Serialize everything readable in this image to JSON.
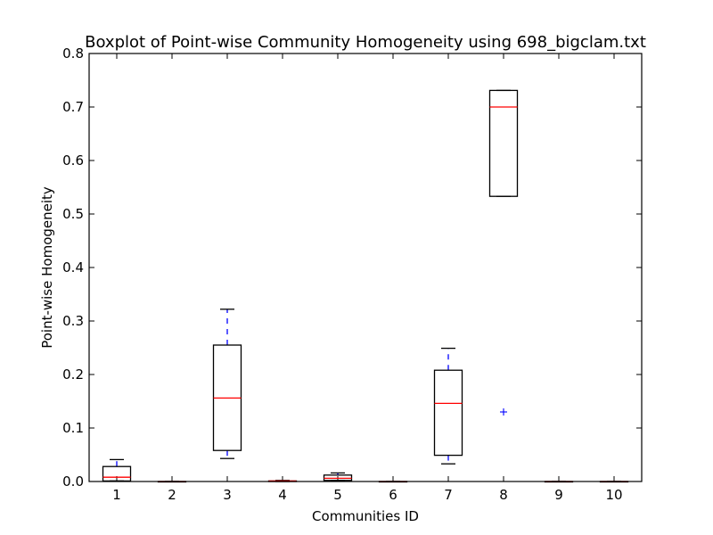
{
  "chart_data": {
    "type": "boxplot",
    "title": "Boxplot of Point-wise Community Homogeneity using 698_bigclam.txt",
    "xlabel": "Communities ID",
    "ylabel": "Point-wise Homogeneity",
    "ylim": [
      0.0,
      0.8
    ],
    "yticks": [
      "0.0",
      "0.1",
      "0.2",
      "0.3",
      "0.4",
      "0.5",
      "0.6",
      "0.7",
      "0.8"
    ],
    "categories": [
      "1",
      "2",
      "3",
      "4",
      "5",
      "6",
      "7",
      "8",
      "9",
      "10"
    ],
    "boxes": [
      {
        "id": "1",
        "whislo": 0.001,
        "q1": 0.001,
        "med": 0.008,
        "q3": 0.028,
        "whishi": 0.041,
        "fliers": []
      },
      {
        "id": "2",
        "whislo": 0.0,
        "q1": 0.0,
        "med": 0.0,
        "q3": 0.0,
        "whishi": 0.0,
        "fliers": []
      },
      {
        "id": "3",
        "whislo": 0.043,
        "q1": 0.058,
        "med": 0.156,
        "q3": 0.255,
        "whishi": 0.322,
        "fliers": []
      },
      {
        "id": "4",
        "whislo": 0.0,
        "q1": 0.0,
        "med": 0.001,
        "q3": 0.001,
        "whishi": 0.002,
        "fliers": []
      },
      {
        "id": "5",
        "whislo": 0.002,
        "q1": 0.002,
        "med": 0.006,
        "q3": 0.012,
        "whishi": 0.016,
        "fliers": []
      },
      {
        "id": "6",
        "whislo": 0.0,
        "q1": 0.0,
        "med": 0.0,
        "q3": 0.0,
        "whishi": 0.0,
        "fliers": []
      },
      {
        "id": "7",
        "whislo": 0.033,
        "q1": 0.049,
        "med": 0.146,
        "q3": 0.208,
        "whishi": 0.249,
        "fliers": []
      },
      {
        "id": "8",
        "whislo": 0.533,
        "q1": 0.533,
        "med": 0.7,
        "q3": 0.731,
        "whishi": 0.731,
        "fliers": [
          0.13
        ]
      },
      {
        "id": "9",
        "whislo": 0.0,
        "q1": 0.0,
        "med": 0.0,
        "q3": 0.0,
        "whishi": 0.0,
        "fliers": []
      },
      {
        "id": "10",
        "whislo": 0.0,
        "q1": 0.0,
        "med": 0.0,
        "q3": 0.0,
        "whishi": 0.0,
        "fliers": []
      }
    ],
    "colors": {
      "box": "#000000",
      "median": "#ff0000",
      "whisker": "#0000ff",
      "flier": "#0000ff"
    },
    "grid": false
  }
}
